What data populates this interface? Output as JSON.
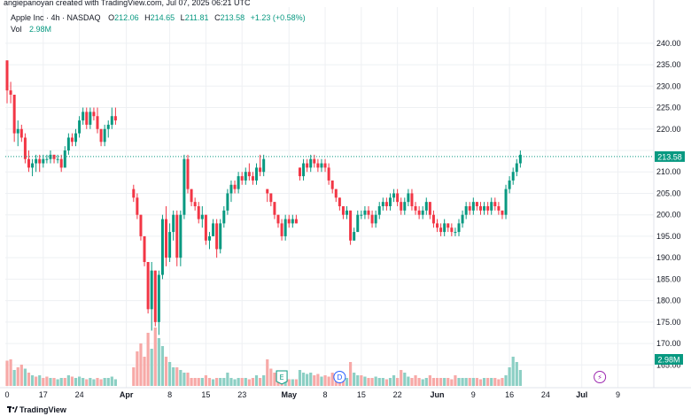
{
  "header": {
    "credit": "angiepanoyan created with TradingView.com, Jul 07, 2025 06:21 UTC",
    "symbol": "Apple Inc · 4h · NASDAQ",
    "o_label": "O",
    "o": "212.06",
    "h_label": "H",
    "h": "214.65",
    "l_label": "L",
    "l": "211.81",
    "c_label": "C",
    "c": "213.58",
    "change": "+1.23 (+0.58%)",
    "vol_label": "Vol",
    "vol": "2.98M"
  },
  "footer": {
    "brand": "TradingView"
  },
  "colors": {
    "up": "#089981",
    "down": "#f23645",
    "vol_up": "#8ccfc4",
    "vol_down": "#f7a9a7",
    "last_price_bg": "#089981",
    "grid": "#eef0f3"
  },
  "chart_data": {
    "type": "candlestick",
    "symbol": "AAPL",
    "timeframe": "4h",
    "y_axis": {
      "min": 163,
      "max": 241,
      "ticks": [
        "240.00",
        "235.00",
        "230.00",
        "225.00",
        "220.00",
        "215.00",
        "210.00",
        "205.00",
        "200.00",
        "195.00",
        "190.00",
        "185.00",
        "180.00",
        "175.00",
        "170.00",
        "165.00"
      ]
    },
    "x_ticks": [
      {
        "label": "0",
        "bar": 0
      },
      {
        "label": "17",
        "bar": 10
      },
      {
        "label": "24",
        "bar": 20
      },
      {
        "label": "Apr",
        "bar": 33
      },
      {
        "label": "8",
        "bar": 45
      },
      {
        "label": "15",
        "bar": 55
      },
      {
        "label": "23",
        "bar": 65
      },
      {
        "label": "May",
        "bar": 78
      },
      {
        "label": "8",
        "bar": 88
      },
      {
        "label": "15",
        "bar": 98
      },
      {
        "label": "22",
        "bar": 108
      },
      {
        "label": "Jun",
        "bar": 119
      },
      {
        "label": "9",
        "bar": 129
      },
      {
        "label": "16",
        "bar": 139
      },
      {
        "label": "24",
        "bar": 149
      },
      {
        "label": "Jul",
        "bar": 159
      },
      {
        "label": "9",
        "bar": 169
      }
    ],
    "last_price": "213.58",
    "last_price_marker": "215.00",
    "volume_label": "2.98M",
    "events": [
      {
        "label": "E",
        "bar": 76
      },
      {
        "label": "D",
        "bar": 92
      },
      {
        "label": "⚡",
        "bar": 164
      }
    ],
    "candles": [
      [
        236,
        236,
        226,
        229
      ],
      [
        229,
        231,
        226,
        228
      ],
      [
        228,
        228,
        217,
        219
      ],
      [
        219,
        222,
        216,
        220
      ],
      [
        220,
        221,
        217,
        218
      ],
      [
        218,
        219,
        212,
        213
      ],
      [
        213,
        215,
        210,
        211
      ],
      [
        211,
        213,
        209,
        212
      ],
      [
        212,
        214,
        210,
        213
      ],
      [
        213,
        214,
        210,
        212
      ],
      [
        212,
        214,
        211,
        213
      ],
      [
        213,
        214,
        212,
        213
      ],
      [
        213,
        215,
        212,
        214
      ],
      [
        214,
        214,
        212,
        213
      ],
      [
        213,
        214,
        212,
        213
      ],
      [
        213,
        214,
        210,
        211
      ],
      [
        211,
        216,
        211,
        215
      ],
      [
        215,
        219,
        214,
        218
      ],
      [
        218,
        219,
        216,
        217
      ],
      [
        217,
        220,
        216,
        219
      ],
      [
        219,
        223,
        218,
        222
      ],
      [
        222,
        225,
        221,
        224
      ],
      [
        224,
        225,
        220,
        221
      ],
      [
        221,
        225,
        220,
        224
      ],
      [
        224,
        225,
        222,
        223
      ],
      [
        223,
        225,
        219,
        220
      ],
      [
        220,
        220,
        216,
        217
      ],
      [
        217,
        221,
        216,
        220
      ],
      [
        220,
        222,
        218,
        221
      ],
      [
        221,
        225,
        220,
        223
      ],
      [
        223,
        225,
        221,
        222
      ],
      null,
      null,
      null,
      null,
      [
        206,
        207,
        203,
        204
      ],
      [
        204,
        205,
        199,
        200
      ],
      [
        200,
        200,
        194,
        195
      ],
      [
        195,
        195,
        188,
        189
      ],
      [
        189,
        189,
        177,
        178
      ],
      [
        178,
        189,
        173,
        187
      ],
      [
        187,
        187,
        174,
        175
      ],
      [
        175,
        187,
        172,
        186
      ],
      [
        186,
        200,
        185,
        199
      ],
      [
        199,
        202,
        188,
        190
      ],
      [
        190,
        198,
        189,
        196
      ],
      [
        196,
        201,
        194,
        200
      ],
      [
        200,
        201,
        188,
        190
      ],
      [
        190,
        201,
        188,
        200
      ],
      [
        200,
        214,
        199,
        213
      ],
      [
        213,
        214,
        205,
        206
      ],
      [
        206,
        206,
        202,
        203
      ],
      [
        203,
        204,
        201,
        202
      ],
      [
        202,
        203,
        198,
        199
      ],
      [
        199,
        202,
        197,
        200
      ],
      [
        200,
        200,
        193,
        194
      ],
      [
        194,
        196,
        192,
        195
      ],
      [
        195,
        199,
        195,
        198
      ],
      [
        198,
        199,
        190,
        192
      ],
      [
        192,
        199,
        191,
        198
      ],
      [
        198,
        202,
        197,
        201
      ],
      [
        201,
        206,
        200,
        205
      ],
      [
        205,
        208,
        203,
        207
      ],
      [
        207,
        208,
        205,
        206
      ],
      [
        206,
        210,
        205,
        209
      ],
      [
        209,
        210,
        207,
        208
      ],
      [
        208,
        211,
        207,
        210
      ],
      [
        210,
        212,
        208,
        209
      ],
      [
        209,
        210,
        207,
        208
      ],
      [
        208,
        212,
        207,
        211
      ],
      [
        211,
        214,
        209,
        210
      ],
      [
        210,
        214,
        209,
        213
      ],
      [
        206,
        206,
        203,
        205
      ],
      [
        205,
        205,
        202,
        203
      ],
      [
        203,
        203,
        199,
        200
      ],
      [
        200,
        200,
        197,
        198
      ],
      [
        198,
        199,
        194,
        195
      ],
      [
        195,
        200,
        194,
        199
      ],
      [
        199,
        200,
        197,
        198
      ],
      [
        198,
        200,
        197,
        199
      ],
      [
        199,
        200,
        198,
        198
      ],
      [
        211,
        211,
        208,
        209
      ],
      [
        209,
        213,
        208,
        212
      ],
      [
        212,
        213,
        210,
        211
      ],
      [
        211,
        214,
        210,
        213
      ],
      [
        213,
        214,
        211,
        212
      ],
      [
        212,
        213,
        210,
        211
      ],
      [
        211,
        213,
        210,
        212
      ],
      [
        212,
        213,
        210,
        211
      ],
      [
        211,
        212,
        207,
        208
      ],
      [
        208,
        208,
        205,
        206
      ],
      [
        206,
        206,
        203,
        204
      ],
      [
        204,
        204,
        201,
        202
      ],
      [
        202,
        202,
        199,
        200
      ],
      [
        200,
        202,
        199,
        201
      ],
      [
        201,
        201,
        193,
        194
      ],
      [
        194,
        197,
        194,
        196
      ],
      [
        196,
        201,
        196,
        200
      ],
      [
        200,
        201,
        199,
        200
      ],
      [
        200,
        202,
        199,
        201
      ],
      [
        201,
        202,
        199,
        200
      ],
      [
        200,
        201,
        197,
        198
      ],
      [
        198,
        201,
        197,
        200
      ],
      [
        200,
        203,
        199,
        202
      ],
      [
        202,
        204,
        201,
        203
      ],
      [
        203,
        204,
        201,
        202
      ],
      [
        202,
        205,
        201,
        204
      ],
      [
        204,
        206,
        203,
        205
      ],
      [
        205,
        206,
        202,
        203
      ],
      [
        203,
        204,
        200,
        201
      ],
      [
        201,
        204,
        200,
        203
      ],
      [
        203,
        206,
        202,
        205
      ],
      [
        205,
        206,
        201,
        202
      ],
      [
        202,
        203,
        200,
        201
      ],
      [
        201,
        202,
        199,
        200
      ],
      [
        200,
        202,
        199,
        201
      ],
      [
        201,
        204,
        200,
        203
      ],
      [
        203,
        203,
        199,
        200
      ],
      [
        200,
        201,
        197,
        198
      ],
      [
        198,
        199,
        196,
        197
      ],
      [
        197,
        198,
        195,
        196
      ],
      [
        196,
        199,
        195,
        198
      ],
      [
        198,
        198,
        196,
        197
      ],
      [
        197,
        198,
        195,
        196
      ],
      [
        196,
        197,
        195,
        196
      ],
      [
        196,
        199,
        195,
        198
      ],
      [
        198,
        201,
        197,
        200
      ],
      [
        200,
        203,
        199,
        202
      ],
      [
        202,
        203,
        200,
        201
      ],
      [
        201,
        204,
        200,
        203
      ],
      [
        203,
        203,
        201,
        202
      ],
      [
        202,
        203,
        200,
        201
      ],
      [
        201,
        203,
        200,
        202
      ],
      [
        202,
        203,
        200,
        201
      ],
      [
        201,
        204,
        200,
        203
      ],
      [
        203,
        204,
        201,
        202
      ],
      [
        202,
        203,
        200,
        201
      ],
      [
        201,
        201,
        199,
        200
      ],
      [
        200,
        207,
        199,
        206
      ],
      [
        206,
        209,
        205,
        208
      ],
      [
        208,
        211,
        207,
        210
      ],
      [
        210,
        213,
        209,
        212
      ],
      [
        212,
        215,
        211,
        214
      ]
    ],
    "volume": [
      [
        9.5,
        "down"
      ],
      [
        10,
        "down"
      ],
      [
        6,
        "up"
      ],
      [
        7,
        "down"
      ],
      [
        8,
        "down"
      ],
      [
        6.5,
        "up"
      ],
      [
        5,
        "down"
      ],
      [
        4,
        "up"
      ],
      [
        3.5,
        "down"
      ],
      [
        4,
        "up"
      ],
      [
        3,
        "down"
      ],
      [
        3.5,
        "down"
      ],
      [
        3,
        "up"
      ],
      [
        3,
        "down"
      ],
      [
        2.5,
        "up"
      ],
      [
        3,
        "up"
      ],
      [
        3,
        "down"
      ],
      [
        4,
        "up"
      ],
      [
        3.5,
        "down"
      ],
      [
        3,
        "up"
      ],
      [
        3.5,
        "up"
      ],
      [
        3,
        "up"
      ],
      [
        2.5,
        "down"
      ],
      [
        3,
        "up"
      ],
      [
        2.5,
        "up"
      ],
      [
        3,
        "down"
      ],
      [
        2.5,
        "down"
      ],
      [
        3,
        "up"
      ],
      [
        3,
        "up"
      ],
      [
        3.5,
        "up"
      ],
      [
        2.5,
        "up"
      ],
      null,
      null,
      null,
      null,
      [
        7,
        "down"
      ],
      [
        13,
        "down"
      ],
      [
        16,
        "down"
      ],
      [
        11,
        "down"
      ],
      [
        20,
        "down"
      ],
      [
        14,
        "up"
      ],
      [
        22,
        "down"
      ],
      [
        18,
        "up"
      ],
      [
        15,
        "up"
      ],
      [
        11,
        "down"
      ],
      [
        9,
        "up"
      ],
      [
        7,
        "up"
      ],
      [
        7,
        "down"
      ],
      [
        6,
        "up"
      ],
      [
        5,
        "up"
      ],
      [
        5,
        "down"
      ],
      [
        3,
        "down"
      ],
      [
        3,
        "down"
      ],
      [
        3,
        "down"
      ],
      [
        3,
        "up"
      ],
      [
        4,
        "down"
      ],
      [
        3,
        "down"
      ],
      [
        2.5,
        "up"
      ],
      [
        3,
        "down"
      ],
      [
        3,
        "up"
      ],
      [
        3,
        "up"
      ],
      [
        5,
        "up"
      ],
      [
        3,
        "up"
      ],
      [
        2.5,
        "up"
      ],
      [
        3,
        "up"
      ],
      [
        3,
        "down"
      ],
      [
        3,
        "up"
      ],
      [
        2.5,
        "down"
      ],
      [
        3,
        "down"
      ],
      [
        4,
        "up"
      ],
      [
        3,
        "down"
      ],
      [
        4,
        "up"
      ],
      [
        10,
        "down"
      ],
      [
        6.5,
        "down"
      ],
      [
        5,
        "down"
      ],
      [
        4,
        "down"
      ],
      [
        3.5,
        "down"
      ],
      [
        3,
        "up"
      ],
      [
        2.5,
        "down"
      ],
      [
        2.5,
        "up"
      ],
      [
        2.5,
        "down"
      ],
      [
        6,
        "up"
      ],
      [
        5,
        "up"
      ],
      [
        4.5,
        "up"
      ],
      [
        5,
        "up"
      ],
      [
        4,
        "down"
      ],
      [
        4.5,
        "down"
      ],
      [
        3.5,
        "up"
      ],
      [
        4,
        "down"
      ],
      [
        3.5,
        "down"
      ],
      [
        5,
        "down"
      ],
      [
        4,
        "down"
      ],
      [
        3.5,
        "down"
      ],
      [
        4,
        "down"
      ],
      [
        3,
        "up"
      ],
      [
        9,
        "down"
      ],
      [
        5,
        "up"
      ],
      [
        4,
        "up"
      ],
      [
        4,
        "down"
      ],
      [
        3.5,
        "up"
      ],
      [
        3,
        "down"
      ],
      [
        3,
        "down"
      ],
      [
        3.5,
        "up"
      ],
      [
        3,
        "up"
      ],
      [
        3,
        "up"
      ],
      [
        2.5,
        "down"
      ],
      [
        3,
        "up"
      ],
      [
        4,
        "up"
      ],
      [
        3,
        "down"
      ],
      [
        6,
        "down"
      ],
      [
        5,
        "up"
      ],
      [
        3.5,
        "up"
      ],
      [
        3,
        "down"
      ],
      [
        4,
        "down"
      ],
      [
        3,
        "down"
      ],
      [
        2.5,
        "up"
      ],
      [
        3,
        "up"
      ],
      [
        4,
        "down"
      ],
      [
        3,
        "down"
      ],
      [
        3,
        "down"
      ],
      [
        3,
        "down"
      ],
      [
        3,
        "up"
      ],
      [
        3,
        "down"
      ],
      [
        2.5,
        "down"
      ],
      [
        4,
        "down"
      ],
      [
        3,
        "up"
      ],
      [
        3,
        "up"
      ],
      [
        3,
        "up"
      ],
      [
        3,
        "down"
      ],
      [
        3,
        "up"
      ],
      [
        3,
        "down"
      ],
      [
        2.5,
        "down"
      ],
      [
        3,
        "up"
      ],
      [
        3,
        "down"
      ],
      [
        3,
        "up"
      ],
      [
        3,
        "down"
      ],
      [
        2.5,
        "down"
      ],
      [
        3,
        "down"
      ],
      [
        4,
        "up"
      ],
      [
        7,
        "up"
      ],
      [
        11,
        "up"
      ],
      [
        9,
        "up"
      ],
      [
        6,
        "up"
      ]
    ]
  }
}
